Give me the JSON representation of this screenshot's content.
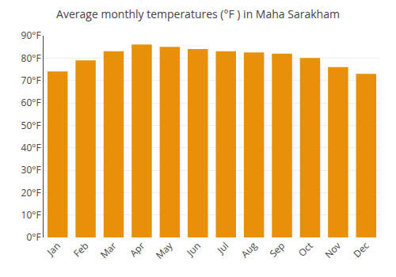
{
  "chart_data": {
    "type": "bar",
    "title": "Average monthly temperatures (°F ) in Maha Sarakham",
    "categories": [
      "Jan",
      "Feb",
      "Mar",
      "Apr",
      "May",
      "Jun",
      "Jul",
      "Aug",
      "Sep",
      "Oct",
      "Nov",
      "Dec"
    ],
    "values": [
      74,
      79,
      83,
      86,
      85,
      84,
      83,
      82.5,
      82,
      80,
      76,
      73
    ],
    "color": "#E8900A",
    "ylim": [
      0,
      90
    ],
    "yticks": [
      {
        "value": 0,
        "label": "0°F"
      },
      {
        "value": 10,
        "label": "10°F"
      },
      {
        "value": 20,
        "label": "20°F"
      },
      {
        "value": 30,
        "label": "30°F"
      },
      {
        "value": 40,
        "label": "40°F"
      },
      {
        "value": 50,
        "label": "50°F"
      },
      {
        "value": 60,
        "label": "60°F"
      },
      {
        "value": 70,
        "label": "70°F"
      },
      {
        "value": 80,
        "label": "80°F"
      },
      {
        "value": 90,
        "label": "90°F"
      }
    ],
    "grid": true
  }
}
